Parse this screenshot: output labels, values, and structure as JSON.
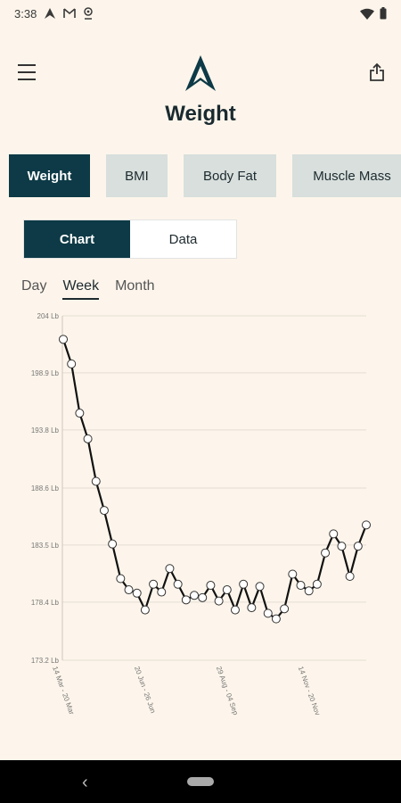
{
  "status_bar": {
    "time": "3:38"
  },
  "header": {
    "title": "Weight"
  },
  "metric_tabs": [
    {
      "label": "Weight",
      "active": true
    },
    {
      "label": "BMI",
      "active": false
    },
    {
      "label": "Body Fat",
      "active": false
    },
    {
      "label": "Muscle Mass",
      "active": false
    }
  ],
  "view_toggle": [
    {
      "label": "Chart",
      "active": true
    },
    {
      "label": "Data",
      "active": false
    }
  ],
  "period_tabs": [
    {
      "label": "Day",
      "active": false
    },
    {
      "label": "Week",
      "active": true
    },
    {
      "label": "Month",
      "active": false
    }
  ],
  "chart_data": {
    "type": "line",
    "y_tick_labels": [
      "204 Lb",
      "198.9 Lb",
      "193.8 Lb",
      "188.6 Lb",
      "183.5 Lb",
      "178.4 Lb",
      "173.2 Lb"
    ],
    "y_ticks": [
      204,
      198.9,
      193.8,
      188.6,
      183.5,
      178.4,
      173.2
    ],
    "ylim": [
      173.2,
      204
    ],
    "x_tick_labels": [
      "14 Mar - 20 Mar",
      "20 Jun - 26 Jun",
      "29 Aug - 04 Sep",
      "14 Nov - 20 Nov"
    ],
    "x_tick_indices": [
      0,
      10,
      20,
      30
    ],
    "grid": true,
    "series": [
      {
        "values": [
          201.9,
          199.7,
          195.3,
          193.0,
          189.2,
          186.6,
          183.6,
          180.5,
          179.5,
          179.2,
          177.7,
          180.0,
          179.3,
          181.4,
          180.0,
          178.6,
          179.0,
          178.8,
          179.9,
          178.5,
          179.5,
          177.7,
          180.0,
          177.9,
          179.8,
          177.4,
          176.9,
          177.8,
          180.9,
          179.9,
          179.4,
          180.0,
          182.8,
          184.5,
          183.4,
          180.7,
          183.4,
          185.3
        ]
      }
    ]
  }
}
